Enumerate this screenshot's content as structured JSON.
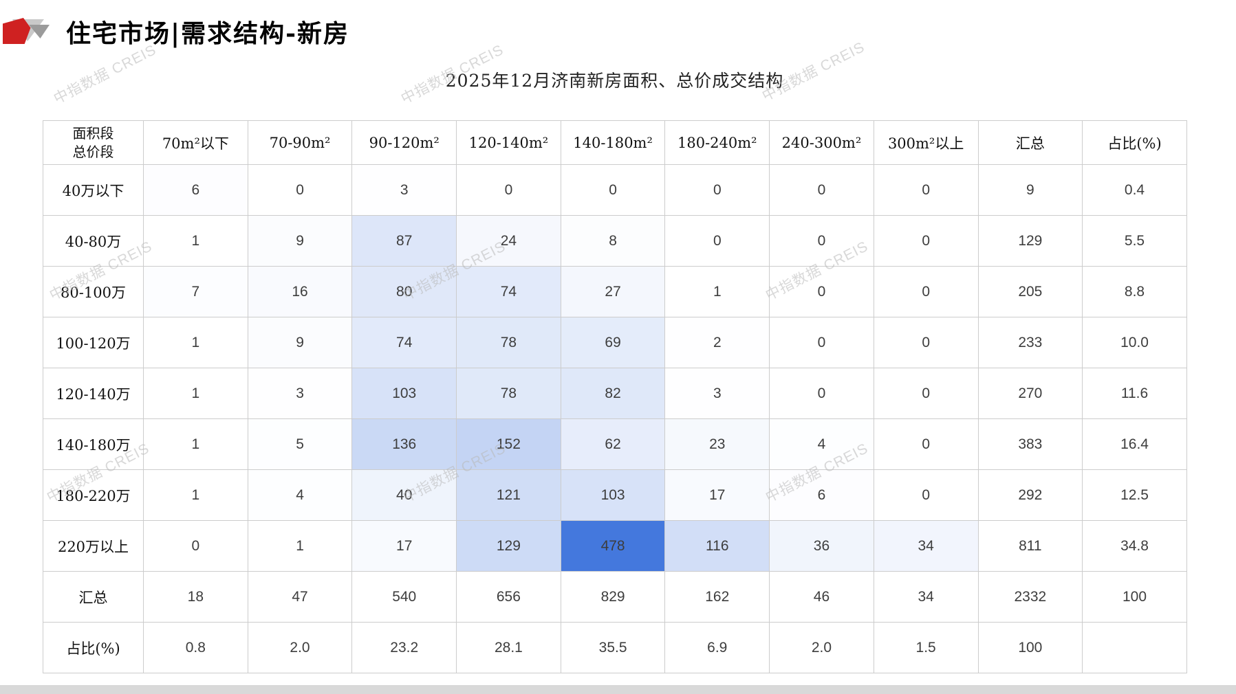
{
  "header": {
    "title": "住宅市场|需求结构-新房"
  },
  "watermark": {
    "text": "中指数据 CREIS"
  },
  "chart_data": {
    "type": "heatmap",
    "title": "2025年12月济南新房面积、总价成交结构",
    "corner": {
      "line1": "面积段",
      "line2": "总价段"
    },
    "col_headers": [
      "70m²以下",
      "70-90m²",
      "90-120m²",
      "120-140m²",
      "140-180m²",
      "180-240m²",
      "240-300m²",
      "300m²以上",
      "汇总",
      "占比(%)"
    ],
    "rows": [
      {
        "label": "40万以下",
        "values": [
          6,
          0,
          3,
          0,
          0,
          0,
          0,
          0
        ],
        "total": "9",
        "pct": "0.4"
      },
      {
        "label": "40-80万",
        "values": [
          1,
          9,
          87,
          24,
          8,
          0,
          0,
          0
        ],
        "total": "129",
        "pct": "5.5"
      },
      {
        "label": "80-100万",
        "values": [
          7,
          16,
          80,
          74,
          27,
          1,
          0,
          0
        ],
        "total": "205",
        "pct": "8.8"
      },
      {
        "label": "100-120万",
        "values": [
          1,
          9,
          74,
          78,
          69,
          2,
          0,
          0
        ],
        "total": "233",
        "pct": "10.0"
      },
      {
        "label": "120-140万",
        "values": [
          1,
          3,
          103,
          78,
          82,
          3,
          0,
          0
        ],
        "total": "270",
        "pct": "11.6"
      },
      {
        "label": "140-180万",
        "values": [
          1,
          5,
          136,
          152,
          62,
          23,
          4,
          0
        ],
        "total": "383",
        "pct": "16.4"
      },
      {
        "label": "180-220万",
        "values": [
          1,
          4,
          40,
          121,
          103,
          17,
          6,
          0
        ],
        "total": "292",
        "pct": "12.5"
      },
      {
        "label": "220万以上",
        "values": [
          0,
          1,
          17,
          129,
          478,
          116,
          36,
          34
        ],
        "total": "811",
        "pct": "34.8"
      }
    ],
    "footer_rows": [
      {
        "label": "汇总",
        "values": [
          "18",
          "47",
          "540",
          "656",
          "829",
          "162",
          "46",
          "34"
        ],
        "total": "2332",
        "pct": "100"
      },
      {
        "label": "占比(%)",
        "values": [
          "0.8",
          "2.0",
          "23.2",
          "28.1",
          "35.5",
          "6.9",
          "2.0",
          "1.5"
        ],
        "total": "100",
        "pct": ""
      }
    ],
    "heatmap_scale": {
      "min_value": 0,
      "max_value": 478,
      "min_color": "#ffffff",
      "max_color": "#4478dd"
    },
    "layout": {
      "legend": "none",
      "grid": "all-borders"
    }
  }
}
